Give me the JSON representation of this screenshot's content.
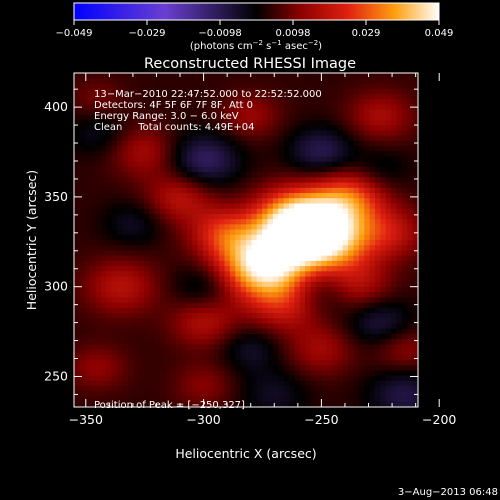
{
  "colorbar": {
    "ticks": [
      "−0.049",
      "−0.029",
      "−0.0098",
      "0.0098",
      "0.029",
      "0.049"
    ],
    "unit_main": "(photons cm",
    "unit_sup1": "−2",
    "unit_mid1": " s",
    "unit_sup2": "−1",
    "unit_mid2": " asec",
    "unit_sup3": "−2",
    "unit_end": ")",
    "range": [
      -0.049,
      0.049
    ]
  },
  "overlay": {
    "line1": "13−Mar−2010 22:47:52.000 to 22:52:52.000",
    "line2": "Detectors: 4F 5F 6F 7F 8F, Att 0",
    "line3": "Energy Range: 3.0 − 6.0 keV",
    "line4": "Clean     Total counts: 4.49E+04",
    "peak": "Position of Peak = [−250,327]"
  },
  "footer": {
    "date": "3−Aug−2013 06:48"
  },
  "chart_data": {
    "type": "heatmap",
    "title": "Reconstructed RHESSI Image",
    "xlabel": "Heliocentric X (arcsec)",
    "ylabel": "Heliocentric Y (arcsec)",
    "xlim": [
      -355,
      -209
    ],
    "ylim": [
      233,
      419
    ],
    "xticks": [
      -350,
      -300,
      -250,
      -200
    ],
    "yticks": [
      250,
      300,
      350,
      400
    ],
    "xtick_labels": [
      "−350",
      "−300",
      "−250",
      "−200"
    ],
    "ytick_labels": [
      "250",
      "300",
      "350",
      "400"
    ],
    "colormap": "red-temperature",
    "peak_position": [
      -250,
      327
    ],
    "sources": [
      {
        "x": -250,
        "y": 327,
        "amp": 0.049,
        "r": 14
      },
      {
        "x": -275,
        "y": 312,
        "amp": 0.043,
        "r": 13
      },
      {
        "x": -262,
        "y": 338,
        "amp": 0.03,
        "r": 12
      },
      {
        "x": -238,
        "y": 350,
        "amp": 0.022,
        "r": 11
      },
      {
        "x": -292,
        "y": 330,
        "amp": 0.018,
        "r": 10
      },
      {
        "x": -265,
        "y": 290,
        "amp": 0.016,
        "r": 11
      },
      {
        "x": -235,
        "y": 300,
        "amp": 0.014,
        "r": 10
      },
      {
        "x": -310,
        "y": 350,
        "amp": 0.015,
        "r": 10
      },
      {
        "x": -335,
        "y": 300,
        "amp": 0.014,
        "r": 11
      },
      {
        "x": -300,
        "y": 280,
        "amp": 0.013,
        "r": 10
      },
      {
        "x": -325,
        "y": 375,
        "amp": 0.012,
        "r": 10
      },
      {
        "x": -280,
        "y": 395,
        "amp": 0.01,
        "r": 9
      },
      {
        "x": -225,
        "y": 395,
        "amp": 0.012,
        "r": 10
      },
      {
        "x": -220,
        "y": 330,
        "amp": 0.013,
        "r": 10
      },
      {
        "x": -250,
        "y": 265,
        "amp": 0.011,
        "r": 10
      },
      {
        "x": -215,
        "y": 265,
        "amp": 0.01,
        "r": 9
      },
      {
        "x": -345,
        "y": 255,
        "amp": 0.009,
        "r": 9
      },
      {
        "x": -300,
        "y": 245,
        "amp": 0.008,
        "r": 9
      },
      {
        "x": -345,
        "y": 405,
        "amp": 0.006,
        "r": 8
      },
      {
        "x": -300,
        "y": 370,
        "amp": -0.016,
        "r": 11
      },
      {
        "x": -250,
        "y": 375,
        "amp": -0.014,
        "r": 10
      },
      {
        "x": -250,
        "y": 300,
        "amp": -0.013,
        "r": 11
      },
      {
        "x": -300,
        "y": 300,
        "amp": -0.009,
        "r": 9
      },
      {
        "x": -225,
        "y": 280,
        "amp": -0.012,
        "r": 10
      },
      {
        "x": -330,
        "y": 335,
        "amp": -0.008,
        "r": 9
      },
      {
        "x": -280,
        "y": 265,
        "amp": -0.009,
        "r": 9
      },
      {
        "x": -215,
        "y": 240,
        "amp": -0.012,
        "r": 11
      },
      {
        "x": -270,
        "y": 240,
        "amp": -0.008,
        "r": 10
      },
      {
        "x": -225,
        "y": 365,
        "amp": -0.007,
        "r": 9
      },
      {
        "x": -345,
        "y": 385,
        "amp": -0.007,
        "r": 9
      }
    ]
  }
}
